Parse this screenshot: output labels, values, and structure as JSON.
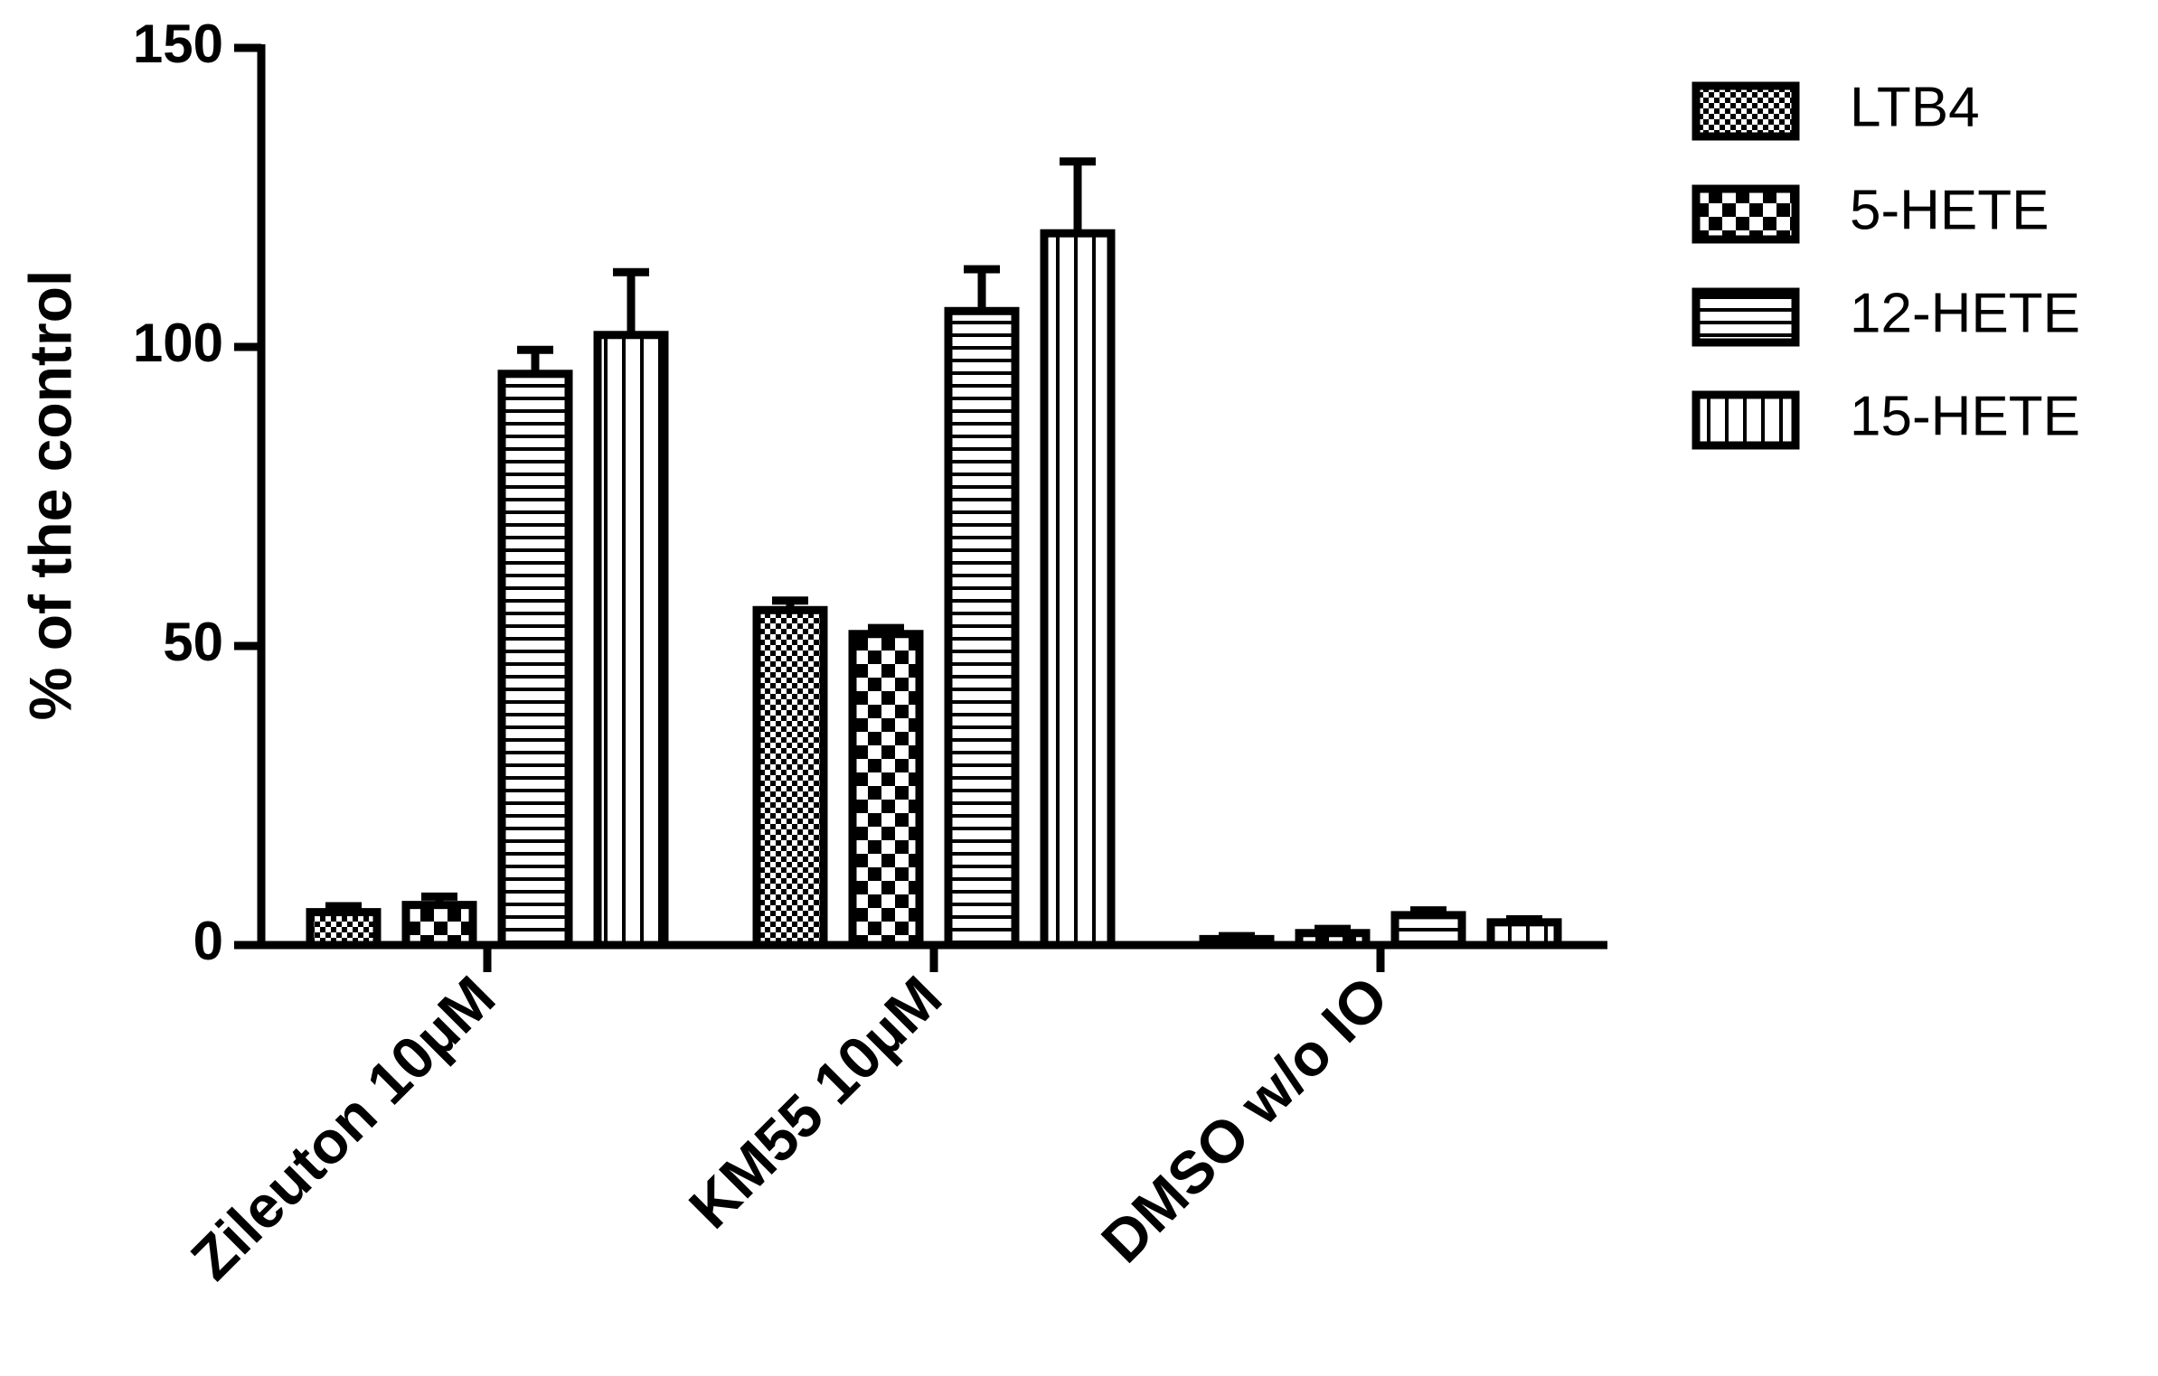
{
  "chart_data": {
    "type": "bar",
    "ylabel": "% of the control",
    "categories": [
      "Zileuton 10µM",
      "KM55 10µM",
      "DMSO w/o IO"
    ],
    "ylim": [
      0,
      150
    ],
    "yticks": [
      0,
      50,
      100,
      150
    ],
    "series": [
      {
        "name": "LTB4",
        "color": "#000000",
        "pattern": "fine-checker",
        "values": [
          5.5,
          56,
          1
        ],
        "errors": [
          1,
          1.6,
          0.5
        ]
      },
      {
        "name": "5-HETE",
        "color": "#000000",
        "pattern": "checker",
        "values": [
          6.7,
          52,
          2
        ],
        "errors": [
          1.4,
          1,
          0.7
        ]
      },
      {
        "name": "12-HETE",
        "color": "#000000",
        "pattern": "horizontal",
        "values": [
          95.5,
          106,
          5
        ],
        "errors": [
          4,
          7,
          0.8
        ]
      },
      {
        "name": "15-HETE",
        "color": "#000000",
        "pattern": "vertical",
        "values": [
          102,
          119,
          3.8
        ],
        "errors": [
          10.5,
          12,
          0.5
        ]
      }
    ]
  }
}
